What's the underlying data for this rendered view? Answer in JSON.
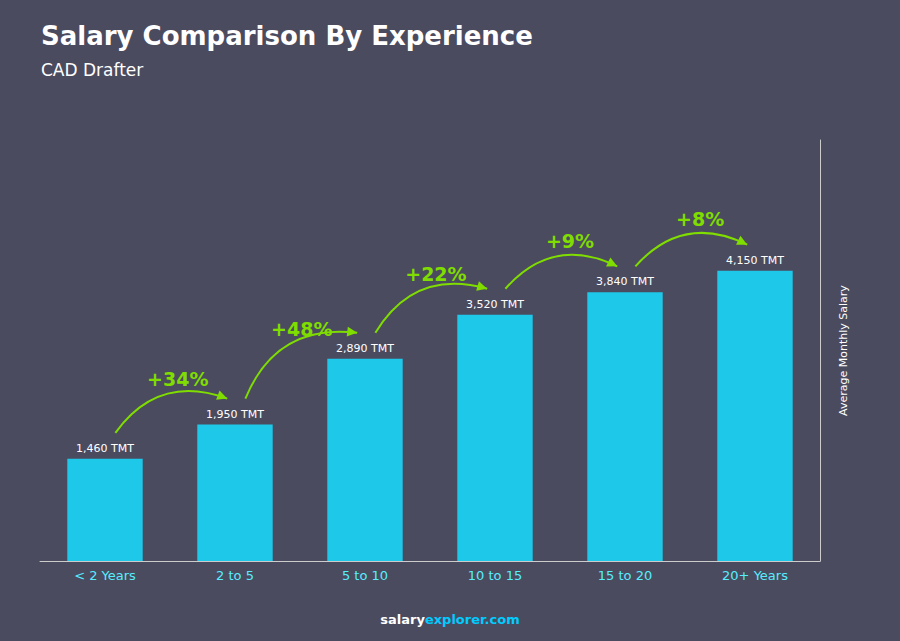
{
  "chart_data": {
    "type": "bar",
    "title": "Salary Comparison By Experience",
    "subtitle": "CAD Drafter",
    "ylabel": "Average Monthly Salary",
    "categories": [
      "< 2 Years",
      "2 to 5",
      "5 to 10",
      "10 to 15",
      "15 to 20",
      "20+ Years"
    ],
    "values": [
      1460,
      1950,
      2890,
      3520,
      3840,
      4150
    ],
    "value_labels": [
      "1,460 TMT",
      "1,950 TMT",
      "2,890 TMT",
      "3,520 TMT",
      "3,840 TMT",
      "4,150 TMT"
    ],
    "data_labels": true,
    "annotations": [
      "+34%",
      "+48%",
      "+22%",
      "+9%",
      "+8%"
    ],
    "footer": [
      "salary",
      "explorer.com"
    ],
    "color": "#1EC8E8",
    "ylim": [
      0,
      6017.5
    ],
    "grid": false,
    "tick_labels": "x"
  }
}
